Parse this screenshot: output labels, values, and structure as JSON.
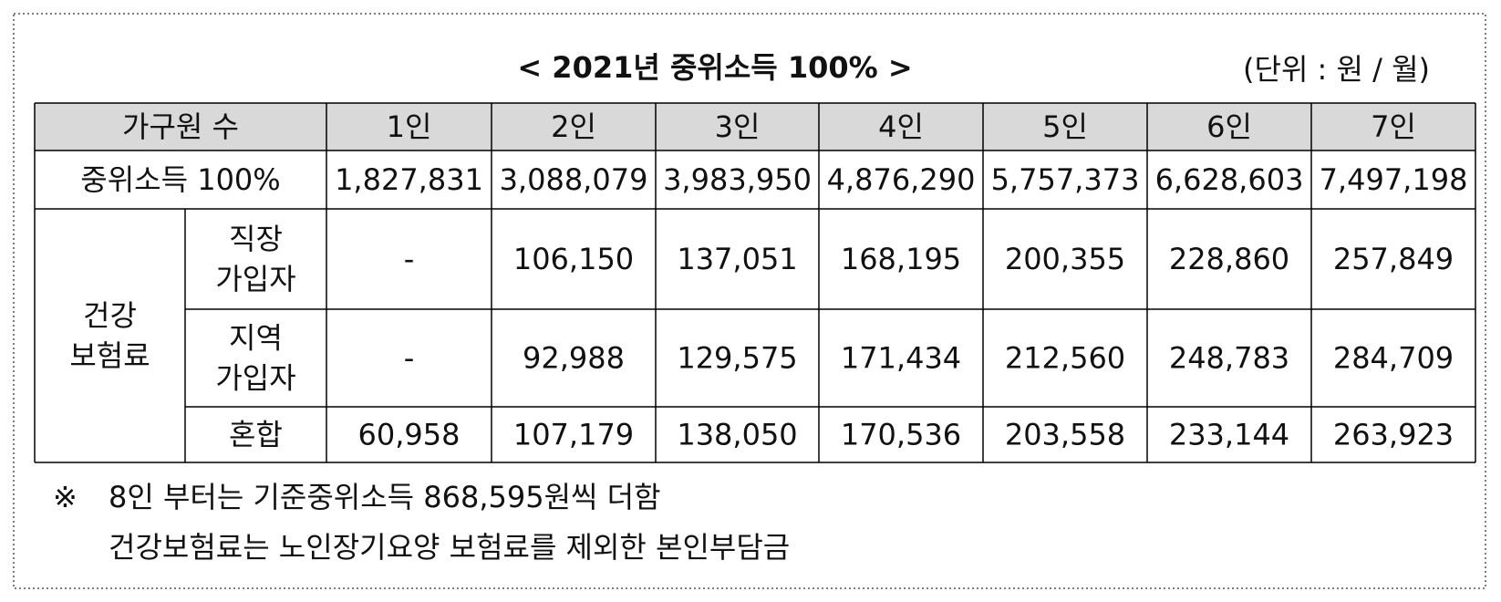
{
  "title": "< 2021년 중위소득 100% >",
  "unit": "(단위 : 원 / 월)",
  "table": {
    "header": [
      "가구원 수",
      "1인",
      "2인",
      "3인",
      "4인",
      "5인",
      "6인",
      "7인"
    ],
    "median": {
      "label": "중위소득 100%",
      "values": [
        "1,827,831",
        "3,088,079",
        "3,983,950",
        "4,876,290",
        "5,757,373",
        "6,628,603",
        "7,497,198"
      ]
    },
    "insurance": {
      "label": [
        "건강",
        "보험료"
      ],
      "rows": [
        {
          "label": [
            "직장",
            "가입자"
          ],
          "values": [
            "-",
            "106,150",
            "137,051",
            "168,195",
            "200,355",
            "228,860",
            "257,849"
          ]
        },
        {
          "label": [
            "지역",
            "가입자"
          ],
          "values": [
            "-",
            "92,988",
            "129,575",
            "171,434",
            "212,560",
            "248,783",
            "284,709"
          ]
        },
        {
          "label": [
            "혼합"
          ],
          "values": [
            "60,958",
            "107,179",
            "138,050",
            "170,536",
            "203,558",
            "233,144",
            "263,923"
          ]
        }
      ]
    }
  },
  "notes": {
    "mark": "※",
    "lines": [
      "8인 부터는 기준중위소득 868,595원씩 더함",
      "건강보험료는 노인장기요양 보험료를 제외한 본인부담금"
    ]
  }
}
